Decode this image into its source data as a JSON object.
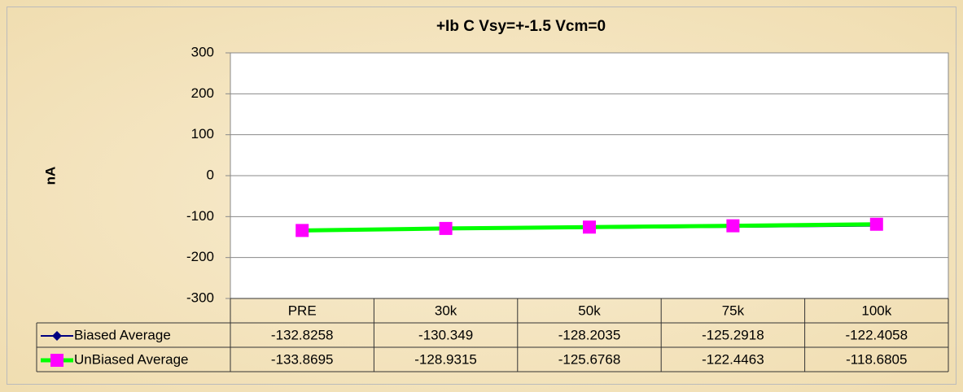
{
  "chart_data": {
    "type": "line",
    "title": "+Ib C Vsy=+-1.5 Vcm=0",
    "y_label": "nA",
    "categories": [
      "PRE",
      "30k",
      "50k",
      "75k",
      "100k"
    ],
    "series": [
      {
        "name": "Biased Average",
        "color": "#000080",
        "marker": "diamond",
        "marker_color": "#000080",
        "values": [
          -132.8258,
          -130.349,
          -128.2035,
          -125.2918,
          -122.4058
        ]
      },
      {
        "name": "UnBiased Average",
        "color": "#00ff00",
        "marker": "square",
        "marker_color": "#ff00ff",
        "values": [
          -133.8695,
          -128.9315,
          -125.6768,
          -122.4463,
          -118.6805
        ]
      }
    ],
    "ylim": [
      -300,
      300
    ],
    "yticks": [
      -300,
      -200,
      -100,
      0,
      100,
      200,
      300
    ],
    "grid": true,
    "data_table": true
  }
}
